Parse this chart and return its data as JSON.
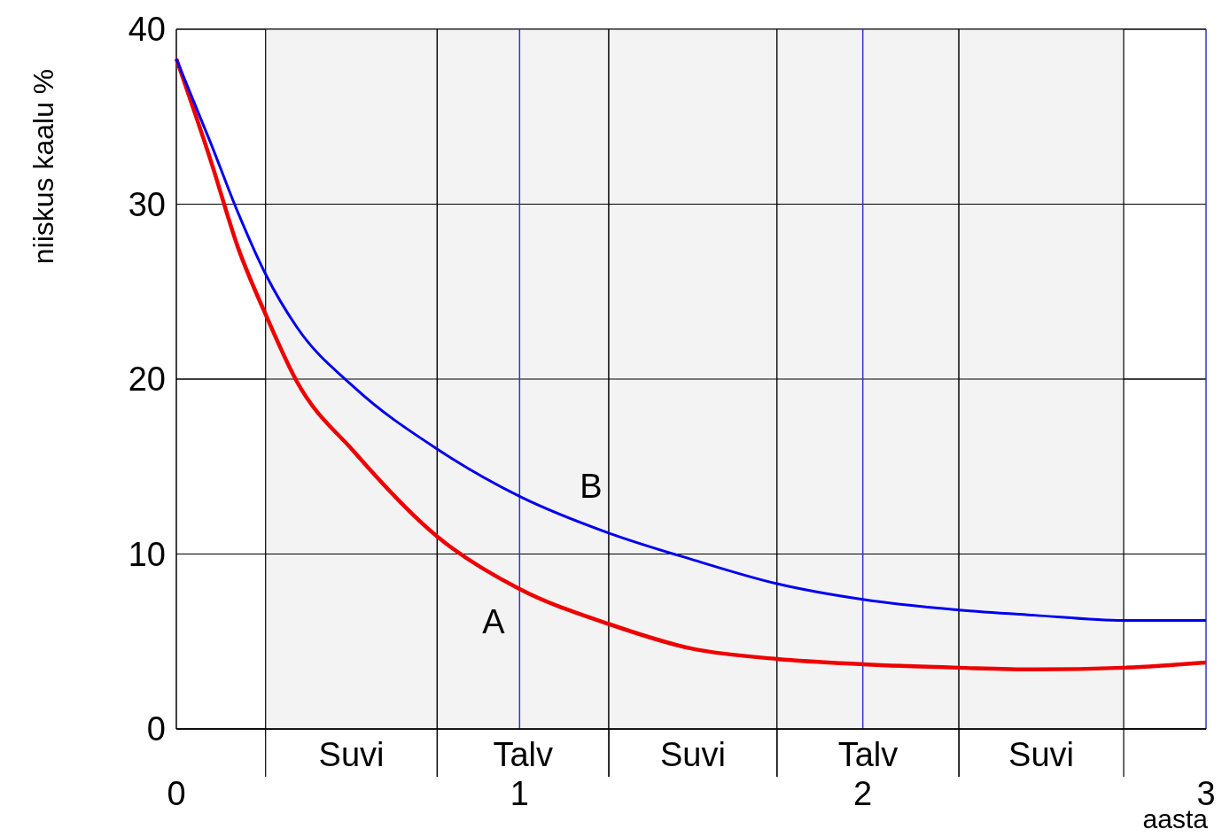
{
  "chart_data": {
    "type": "line",
    "ylabel": "niiskus kaalu %",
    "xlabel": "aasta",
    "x": [
      0,
      0.1,
      0.18,
      0.26,
      0.35,
      0.52,
      0.76,
      1.0,
      1.26,
      1.5,
      1.75,
      2.0,
      2.28,
      2.5,
      2.76,
      3.0
    ],
    "series": [
      {
        "name": "A",
        "color": "#ee0000",
        "values": [
          38.3,
          32.5,
          27.5,
          23.7,
          19.9,
          15.8,
          11.0,
          8.0,
          6.0,
          4.6,
          4.0,
          3.7,
          3.5,
          3.4,
          3.5,
          3.8
        ]
      },
      {
        "name": "B",
        "color": "#0000ee",
        "values": [
          38.3,
          33.5,
          29.5,
          26.0,
          23.0,
          19.5,
          16.0,
          13.3,
          11.2,
          9.7,
          8.3,
          7.4,
          6.8,
          6.5,
          6.2,
          6.2
        ]
      }
    ],
    "xlim": [
      0,
      3
    ],
    "xticks": [
      0,
      1,
      2,
      3
    ],
    "ylim": [
      0,
      40
    ],
    "yticks": [
      0,
      10,
      20,
      30,
      40
    ],
    "grid": "y",
    "marker": "none",
    "line_style": "solid",
    "ref_lines": [
      {
        "axis": "x",
        "value": 1,
        "color": "#3333cc"
      },
      {
        "axis": "x",
        "value": 2,
        "color": "#3333cc"
      }
    ],
    "bands": [
      {
        "axis": "x",
        "from": 0.26,
        "to": 0.76,
        "label": "Suvi",
        "color": "#f3f3f3"
      },
      {
        "axis": "x",
        "from": 0.76,
        "to": 1.26,
        "label": "Talv",
        "color": "#f3f3f3"
      },
      {
        "axis": "x",
        "from": 1.26,
        "to": 1.75,
        "label": "Suvi",
        "color": "#f3f3f3"
      },
      {
        "axis": "x",
        "from": 1.75,
        "to": 2.28,
        "label": "Talv",
        "color": "#f3f3f3"
      },
      {
        "axis": "x",
        "from": 2.28,
        "to": 2.76,
        "label": "Suvi",
        "color": "#f3f3f3"
      }
    ]
  }
}
